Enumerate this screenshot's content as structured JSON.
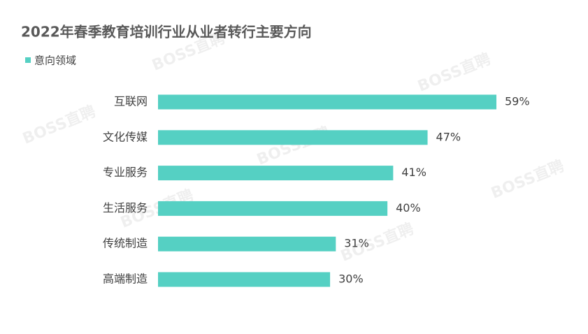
{
  "chart_data": {
    "type": "bar",
    "orientation": "horizontal",
    "title": "2022年春季教育培训行业从业者转行主要方向",
    "categories": [
      "互联网",
      "文化传媒",
      "专业服务",
      "生活服务",
      "传统制造",
      "高端制造"
    ],
    "series": [
      {
        "name": "意向领域",
        "color": "#55d0c3",
        "values": [
          59,
          47,
          41,
          40,
          31,
          30
        ],
        "value_labels": [
          "59%",
          "47%",
          "41%",
          "40%",
          "31%",
          "30%"
        ]
      }
    ],
    "legend": "top-left",
    "watermark": "BOSS直聘"
  }
}
